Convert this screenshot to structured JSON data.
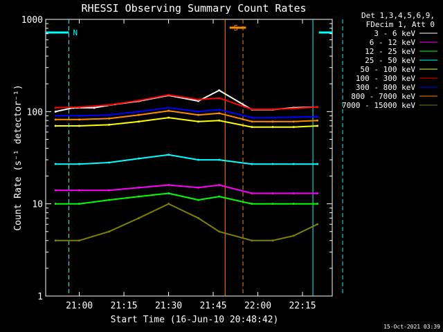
{
  "chart_data": {
    "type": "line",
    "title": "RHESSI Observing Summary Count Rates",
    "xlabel": "Start Time (16-Jun-10 20:48:42)",
    "ylabel": "Count Rate (s⁻¹ detector⁻¹)",
    "y_scale": "log",
    "ylim": [
      1,
      1000
    ],
    "xlim": [
      "20:48:42",
      "22:25:00"
    ],
    "x_ticks": [
      "21:00",
      "21:15",
      "21:30",
      "21:45",
      "22:00",
      "22:15"
    ],
    "y_ticks": [
      "1",
      "10",
      "100",
      "1000"
    ],
    "grid": false,
    "legend_position": "top-right",
    "legend_header": [
      "Det 1,3,4,5,6,9,",
      "FDecim 1, Att 0"
    ],
    "footer_date": "15-Oct-2021 03:39",
    "flags": [
      {
        "label": "N",
        "color": "#00ffff",
        "intervals": [
          [
            "20:48:42",
            "20:56:30"
          ],
          [
            "22:20:30",
            "22:25:00"
          ]
        ]
      },
      {
        "label": "S",
        "color": "#ff8c00",
        "intervals": [
          [
            "21:50:30",
            "21:56:00"
          ]
        ]
      }
    ],
    "vlines": [
      {
        "time": "20:56:30",
        "color": "#00ffff",
        "style": "dashed"
      },
      {
        "time": "21:49:00",
        "color": "#ff8c00",
        "style": "solid"
      },
      {
        "time": "21:55:00",
        "color": "#ff8c00",
        "style": "dashed"
      },
      {
        "time": "22:18:30",
        "color": "#00ffff",
        "style": "solid"
      },
      {
        "time": "22:28:30",
        "color": "#00ffff",
        "style": "dashed"
      }
    ],
    "series": [
      {
        "name": "3 - 6 keV",
        "color": "#ffffff",
        "x": [
          "20:52",
          "20:58",
          "21:05",
          "21:12",
          "21:20",
          "21:30",
          "21:40",
          "21:47",
          "21:58",
          "22:05",
          "22:12",
          "22:20"
        ],
        "values": [
          100,
          110,
          110,
          120,
          130,
          150,
          130,
          170,
          105,
          105,
          110,
          112
        ]
      },
      {
        "name": "6 - 12 keV",
        "color": "#ff00ff",
        "x": [
          "20:52",
          "21:00",
          "21:10",
          "21:20",
          "21:30",
          "21:40",
          "21:47",
          "21:58",
          "22:05",
          "22:12",
          "22:20"
        ],
        "values": [
          14,
          14,
          14,
          15,
          16,
          15,
          16,
          13,
          13,
          13,
          13
        ]
      },
      {
        "name": "12 - 25 keV",
        "color": "#00ff00",
        "x": [
          "20:52",
          "21:00",
          "21:10",
          "21:20",
          "21:30",
          "21:40",
          "21:47",
          "21:58",
          "22:05",
          "22:12",
          "22:20"
        ],
        "values": [
          10,
          10,
          11,
          12,
          13,
          11,
          12,
          10,
          10,
          10,
          10
        ]
      },
      {
        "name": "25 - 50 keV",
        "color": "#00ffff",
        "x": [
          "20:52",
          "21:00",
          "21:10",
          "21:20",
          "21:30",
          "21:40",
          "21:47",
          "21:58",
          "22:05",
          "22:12",
          "22:20"
        ],
        "values": [
          27,
          27,
          28,
          31,
          34,
          30,
          30,
          27,
          27,
          27,
          27
        ]
      },
      {
        "name": "50 - 100 keV",
        "color": "#ffff00",
        "x": [
          "20:52",
          "21:00",
          "21:10",
          "21:20",
          "21:30",
          "21:40",
          "21:47",
          "21:58",
          "22:05",
          "22:12",
          "22:20"
        ],
        "values": [
          70,
          70,
          72,
          78,
          86,
          78,
          80,
          68,
          68,
          68,
          70
        ]
      },
      {
        "name": "100 - 300 keV",
        "color": "#ff0000",
        "x": [
          "20:52",
          "21:00",
          "21:10",
          "21:20",
          "21:30",
          "21:40",
          "21:47",
          "21:58",
          "22:05",
          "22:12",
          "22:20"
        ],
        "values": [
          110,
          112,
          118,
          132,
          152,
          135,
          140,
          106,
          106,
          108,
          112
        ]
      },
      {
        "name": "300 - 800 keV",
        "color": "#0000ff",
        "x": [
          "20:52",
          "21:00",
          "21:10",
          "21:20",
          "21:30",
          "21:40",
          "21:47",
          "21:58",
          "22:05",
          "22:12",
          "22:20"
        ],
        "values": [
          90,
          90,
          92,
          100,
          110,
          100,
          105,
          86,
          86,
          87,
          88
        ]
      },
      {
        "name": "800 - 7000 keV",
        "color": "#ff8c00",
        "x": [
          "20:52",
          "21:00",
          "21:10",
          "21:20",
          "21:30",
          "21:40",
          "21:47",
          "21:58",
          "22:05",
          "22:12",
          "22:20"
        ],
        "values": [
          82,
          82,
          84,
          92,
          102,
          92,
          96,
          78,
          78,
          78,
          80
        ]
      },
      {
        "name": "7000 - 15000 keV",
        "color": "#808000",
        "x": [
          "20:52",
          "21:00",
          "21:10",
          "21:20",
          "21:30",
          "21:40",
          "21:47",
          "21:58",
          "22:05",
          "22:12",
          "22:20"
        ],
        "values": [
          4,
          4,
          5,
          7,
          10,
          7,
          5,
          4,
          4,
          4.5,
          6
        ]
      }
    ]
  }
}
